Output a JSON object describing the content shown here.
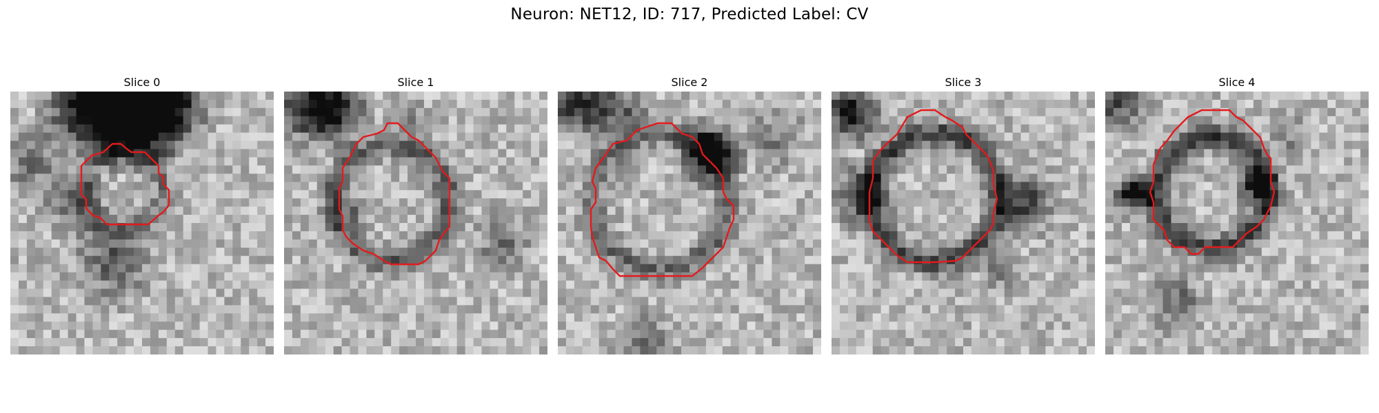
{
  "figure": {
    "title": "Neuron: NET12, ID: 717, Predicted Label: CV"
  },
  "panels": [
    {
      "title": "Slice 0",
      "outline_color": "#e41a1c"
    },
    {
      "title": "Slice 1",
      "outline_color": "#e41a1c"
    },
    {
      "title": "Slice 2",
      "outline_color": "#e41a1c"
    },
    {
      "title": "Slice 3",
      "outline_color": "#e41a1c"
    },
    {
      "title": "Slice 4",
      "outline_color": "#e41a1c"
    }
  ],
  "colormap": "grayscale"
}
